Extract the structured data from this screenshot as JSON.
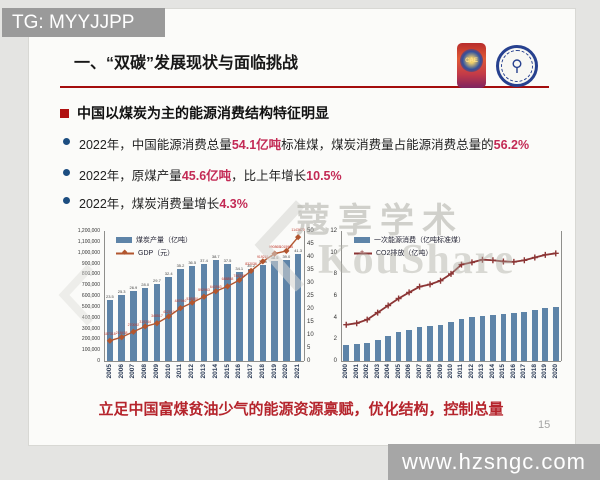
{
  "overlays": {
    "tg_label": "TG: MYYJJPP",
    "site_label": "www.hzsngc.com",
    "watermark_cn": "蔻享学术",
    "watermark_en": "KouShare"
  },
  "slide": {
    "title": "一、“双碳”发展现状与面临挑战",
    "page_number": "15",
    "heading": "中国以煤炭为主的能源消费结构特征明显",
    "bullets": [
      {
        "segments": [
          {
            "text": "2022年，中国能源消费总量",
            "red": false
          },
          {
            "text": "54.1亿吨",
            "red": true
          },
          {
            "text": "标准煤，煤炭消费量占能源消费总量的",
            "red": false
          },
          {
            "text": "56.2%",
            "red": true
          }
        ]
      },
      {
        "segments": [
          {
            "text": "2022年，原煤产量",
            "red": false
          },
          {
            "text": "45.6亿吨",
            "red": true
          },
          {
            "text": "，比上年增长",
            "red": false
          },
          {
            "text": "10.5%",
            "red": true
          }
        ]
      },
      {
        "segments": [
          {
            "text": "2022年，煤炭消费量增长",
            "red": false
          },
          {
            "text": "4.3%",
            "red": true
          }
        ]
      }
    ],
    "footer_highlight": "立足中国富煤贫油少气的能源资源禀赋，优化结构，控制总量",
    "logos": {
      "cae_label": "CAE"
    }
  },
  "chart_data": [
    {
      "type": "bar",
      "subtype": "bar+line dual axis",
      "categories": [
        "2005",
        "2006",
        "2007",
        "2008",
        "2009",
        "2010",
        "2011",
        "2012",
        "2013",
        "2014",
        "2015",
        "2016",
        "2017",
        "2018",
        "2019",
        "2020",
        "2021"
      ],
      "series": [
        {
          "name": "煤炭产量（亿吨）",
          "type": "bar",
          "axis": "right",
          "values": [
            23.5,
            25.3,
            26.9,
            28.0,
            29.7,
            32.4,
            35.2,
            36.5,
            37.4,
            38.7,
            37.5,
            34.1,
            35.2,
            36.8,
            38.5,
            39.0,
            41.3
          ]
        },
        {
          "name": "GDP（元）",
          "type": "line",
          "axis": "left",
          "values": [
            187318,
            219438,
            270092,
            319244,
            348517,
            412119,
            487940,
            538580,
            592963,
            643563,
            688858,
            746395,
            832036,
            919281,
            990865,
            1015986,
            1143670
          ]
        }
      ],
      "left_axis": {
        "min": 0,
        "max": 1200000,
        "step": 100000,
        "comma": true
      },
      "right_axis": {
        "max": 50,
        "ticks": [
          0,
          5,
          10,
          15,
          20,
          25,
          30,
          35,
          40,
          45,
          50
        ]
      },
      "legend_position": "top-left",
      "grid": false,
      "marker": "diamond",
      "bar_labels": true,
      "line_labels": true
    },
    {
      "type": "bar",
      "subtype": "bar+line shared axis",
      "categories": [
        "2000",
        "2001",
        "2002",
        "2003",
        "2004",
        "2005",
        "2006",
        "2007",
        "2008",
        "2009",
        "2010",
        "2011",
        "2012",
        "2013",
        "2014",
        "2015",
        "2016",
        "2017",
        "2018",
        "2019",
        "2020"
      ],
      "series": [
        {
          "name": "一次能源消费（亿吨标准煤）",
          "type": "bar",
          "axis": "left",
          "values": [
            1.47,
            1.56,
            1.7,
            1.97,
            2.3,
            2.64,
            2.87,
            3.11,
            3.21,
            3.36,
            3.61,
            3.87,
            4.02,
            4.17,
            4.28,
            4.34,
            4.41,
            4.55,
            4.72,
            4.87,
            4.98
          ]
        },
        {
          "name": "CO2排放（亿吨）",
          "type": "line",
          "axis": "left",
          "values": [
            3.35,
            3.49,
            3.82,
            4.47,
            5.12,
            5.77,
            6.33,
            6.86,
            7.07,
            7.41,
            8.04,
            8.9,
            9.1,
            9.35,
            9.3,
            9.19,
            9.15,
            9.3,
            9.55,
            9.8,
            9.94
          ]
        }
      ],
      "left_axis": {
        "min": 0,
        "max": 12,
        "step": 2,
        "comma": false
      },
      "legend_position": "top-left",
      "grid": false,
      "marker": "plus",
      "bar_labels": false,
      "line_labels": false
    }
  ],
  "colors": {
    "bar_blue": "#5e84a8",
    "gdp_line": "#b2562f",
    "co2_line": "#8c3535",
    "title_rule": "#a40d0d",
    "heading_square": "#b01111",
    "bullet_blue": "#1c4d80",
    "value_red": "#c32a55",
    "footer_red": "#b5242c"
  }
}
